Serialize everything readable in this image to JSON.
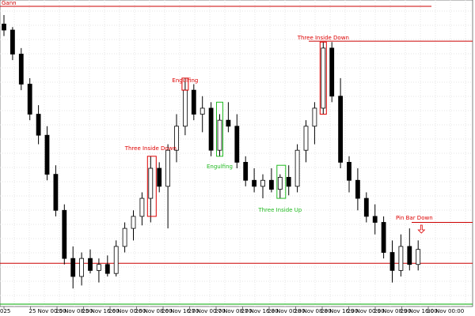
{
  "chart_data": {
    "type": "candlestick",
    "title": "Gann",
    "up_color": "#ffffff",
    "down_color": "#000000",
    "ylim": [
      -2,
      100
    ],
    "grid": true,
    "candles": [
      {
        "open": 92,
        "high": 95,
        "low": 88,
        "close": 90
      },
      {
        "open": 90,
        "high": 91,
        "low": 80,
        "close": 82
      },
      {
        "open": 82,
        "high": 84,
        "low": 70,
        "close": 72
      },
      {
        "open": 72,
        "high": 74,
        "low": 60,
        "close": 62
      },
      {
        "open": 62,
        "high": 65,
        "low": 52,
        "close": 55
      },
      {
        "open": 55,
        "high": 58,
        "low": 40,
        "close": 42
      },
      {
        "open": 42,
        "high": 45,
        "low": 28,
        "close": 30
      },
      {
        "open": 30,
        "high": 32,
        "low": 12,
        "close": 14
      },
      {
        "open": 14,
        "high": 18,
        "low": 4,
        "close": 8
      },
      {
        "open": 8,
        "high": 16,
        "low": 5,
        "close": 14
      },
      {
        "open": 14,
        "high": 17,
        "low": 9,
        "close": 10
      },
      {
        "open": 10,
        "high": 14,
        "low": 6,
        "close": 12
      },
      {
        "open": 12,
        "high": 15,
        "low": 8,
        "close": 9
      },
      {
        "open": 9,
        "high": 20,
        "low": 8,
        "close": 18
      },
      {
        "open": 18,
        "high": 26,
        "low": 16,
        "close": 24
      },
      {
        "open": 24,
        "high": 30,
        "low": 20,
        "close": 28
      },
      {
        "open": 28,
        "high": 36,
        "low": 25,
        "close": 34
      },
      {
        "open": 34,
        "high": 48,
        "low": 26,
        "close": 44
      },
      {
        "open": 44,
        "high": 46,
        "low": 36,
        "close": 38
      },
      {
        "open": 38,
        "high": 52,
        "low": 24,
        "close": 50
      },
      {
        "open": 50,
        "high": 62,
        "low": 46,
        "close": 58
      },
      {
        "open": 58,
        "high": 74,
        "low": 55,
        "close": 70
      },
      {
        "open": 70,
        "high": 72,
        "low": 60,
        "close": 62
      },
      {
        "open": 62,
        "high": 68,
        "low": 56,
        "close": 64
      },
      {
        "open": 64,
        "high": 66,
        "low": 48,
        "close": 50
      },
      {
        "open": 50,
        "high": 62,
        "low": 48,
        "close": 60
      },
      {
        "open": 60,
        "high": 66,
        "low": 56,
        "close": 58
      },
      {
        "open": 58,
        "high": 62,
        "low": 44,
        "close": 46
      },
      {
        "open": 46,
        "high": 48,
        "low": 38,
        "close": 40
      },
      {
        "open": 40,
        "high": 44,
        "low": 36,
        "close": 38
      },
      {
        "open": 38,
        "high": 42,
        "low": 34,
        "close": 40
      },
      {
        "open": 40,
        "high": 44,
        "low": 36,
        "close": 37
      },
      {
        "open": 37,
        "high": 42,
        "low": 34,
        "close": 41
      },
      {
        "open": 41,
        "high": 45,
        "low": 35,
        "close": 38
      },
      {
        "open": 38,
        "high": 52,
        "low": 36,
        "close": 50
      },
      {
        "open": 50,
        "high": 60,
        "low": 46,
        "close": 58
      },
      {
        "open": 58,
        "high": 66,
        "low": 52,
        "close": 64
      },
      {
        "open": 64,
        "high": 86,
        "low": 62,
        "close": 84
      },
      {
        "open": 84,
        "high": 86,
        "low": 66,
        "close": 68
      },
      {
        "open": 68,
        "high": 74,
        "low": 44,
        "close": 46
      },
      {
        "open": 46,
        "high": 48,
        "low": 36,
        "close": 40
      },
      {
        "open": 40,
        "high": 44,
        "low": 30,
        "close": 34
      },
      {
        "open": 34,
        "high": 36,
        "low": 26,
        "close": 28
      },
      {
        "open": 28,
        "high": 32,
        "low": 22,
        "close": 26
      },
      {
        "open": 26,
        "high": 28,
        "low": 14,
        "close": 16
      },
      {
        "open": 16,
        "high": 20,
        "low": 6,
        "close": 10
      },
      {
        "open": 10,
        "high": 22,
        "low": 8,
        "close": 18
      },
      {
        "open": 18,
        "high": 24,
        "low": 10,
        "close": 12
      },
      {
        "open": 12,
        "high": 20,
        "low": 10,
        "close": 17
      }
    ],
    "levels": [
      {
        "value": 97.9,
        "color": "#cc0000"
      },
      {
        "value": 12.4,
        "color": "#cc0000"
      },
      {
        "value": -1.2,
        "color": "#00aa00"
      },
      {
        "value": 86.3,
        "color": "#cc0000"
      },
      {
        "value": 26,
        "color": "#cc0000"
      }
    ],
    "annotations": [
      {
        "text": "Three Inside Down",
        "color": "#dd0000"
      },
      {
        "text": "Engulfing",
        "color": "#dd0000"
      },
      {
        "text": "Engulfing",
        "color": "#22bb22"
      },
      {
        "text": "Three Inside Up",
        "color": "#22bb22"
      },
      {
        "text": "Three Inside Down",
        "color": "#dd0000"
      },
      {
        "text": "Pin Bar Down",
        "color": "#dd0000"
      }
    ],
    "xlabels": [
      "025",
      "25 Nov 00:00",
      "25 Nov 08:00",
      "25 Nov 16:00",
      "26 Nov 00:00",
      "26 Nov 08:00",
      "26 Nov 16:00",
      "27 Nov 00:00",
      "27 Nov 08:00",
      "27 Nov 16:00",
      "28 Nov 00:00",
      "28 Nov 08:00",
      "28 Nov 16:00",
      "29 Nov 00:00",
      "29 Nov 08:00",
      "29 Nov 16:00",
      "30 Nov 00:00"
    ]
  }
}
